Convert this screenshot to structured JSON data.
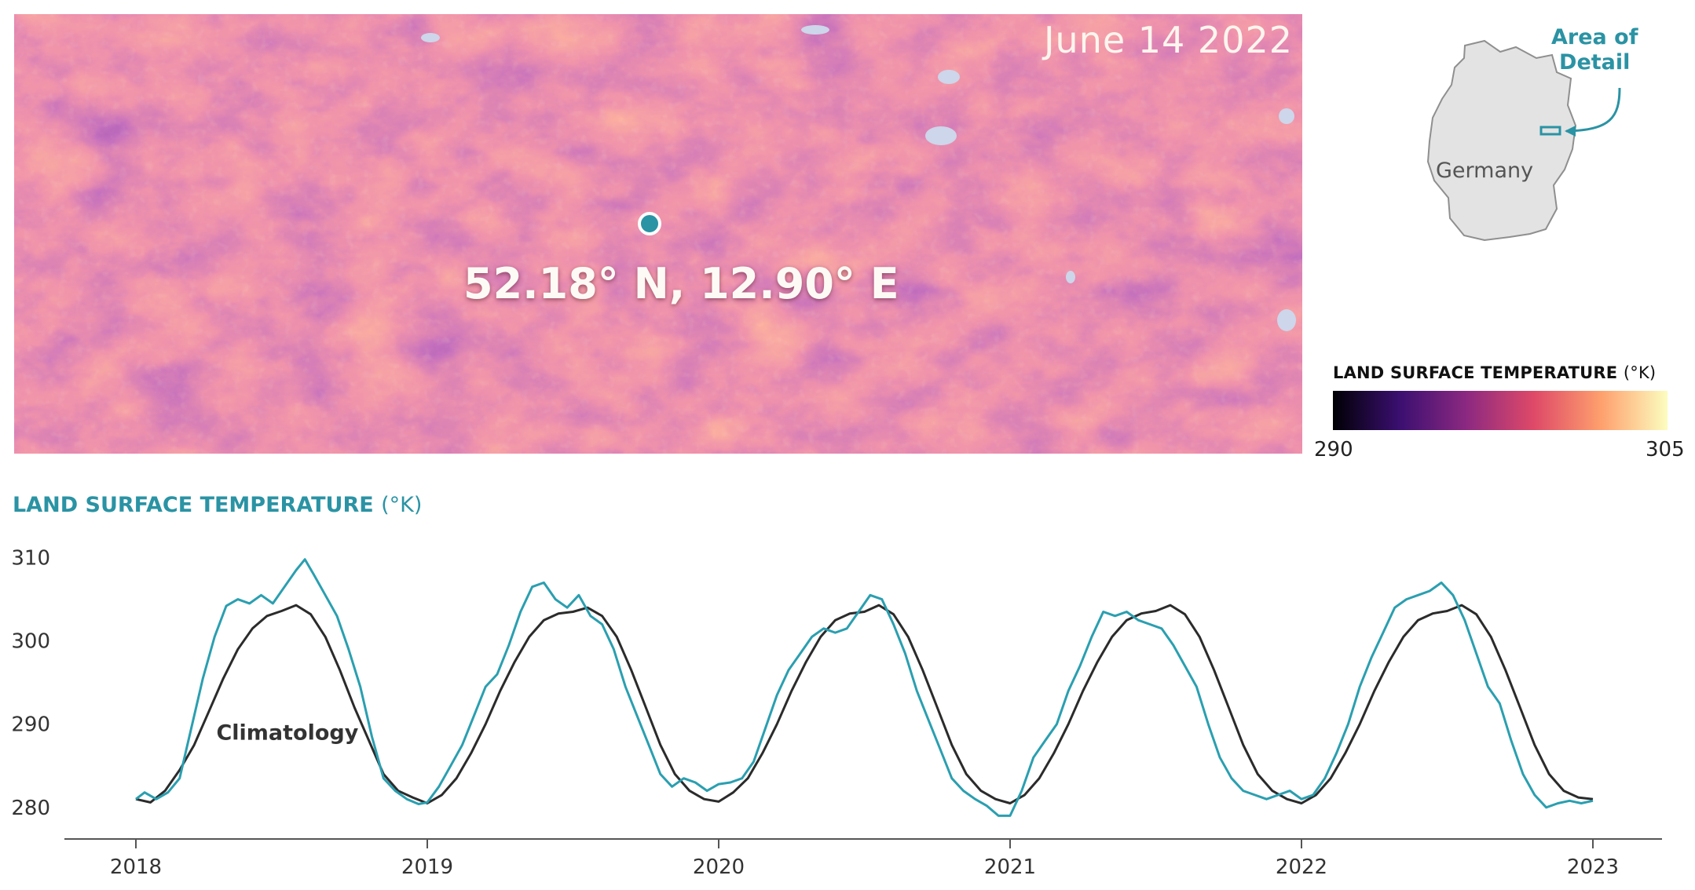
{
  "map": {
    "date": "June 14 2022",
    "coordinate": "52.18° N, 12.90° E"
  },
  "locator": {
    "callout": [
      "Area of",
      "Detail"
    ],
    "country": "Germany"
  },
  "colorbar": {
    "title": "LAND SURFACE TEMPERATURE",
    "unit": "(°K)",
    "min": "290",
    "max": "305",
    "palette": [
      "#000004",
      "#3b0f70",
      "#8c2981",
      "#de4968",
      "#fe9f6d",
      "#fcfdbf"
    ]
  },
  "chart_data": {
    "type": "line",
    "title": "LAND SURFACE TEMPERATURE",
    "title_unit": "(°K)",
    "xlabel": "",
    "ylabel": "",
    "x_ticks": [
      "2018",
      "2019",
      "2020",
      "2021",
      "2022",
      "2023"
    ],
    "y_ticks": [
      280,
      290,
      300,
      310
    ],
    "xlim": [
      2018.0,
      2023.0
    ],
    "ylim": [
      278,
      311
    ],
    "grid": false,
    "series": [
      {
        "name": "Climatology",
        "color": "#2b2b2b",
        "points": [
          [
            2018.0,
            281.0
          ],
          [
            2018.05,
            280.6
          ],
          [
            2018.1,
            282.0
          ],
          [
            2018.15,
            284.5
          ],
          [
            2018.2,
            287.5
          ],
          [
            2018.25,
            291.5
          ],
          [
            2018.3,
            295.5
          ],
          [
            2018.35,
            299.0
          ],
          [
            2018.4,
            301.5
          ],
          [
            2018.45,
            303.0
          ],
          [
            2018.5,
            303.6
          ],
          [
            2018.55,
            304.3
          ],
          [
            2018.6,
            303.2
          ],
          [
            2018.65,
            300.5
          ],
          [
            2018.7,
            296.5
          ],
          [
            2018.75,
            292.0
          ],
          [
            2018.8,
            288.0
          ],
          [
            2018.85,
            284.0
          ],
          [
            2018.9,
            282.0
          ],
          [
            2018.95,
            281.2
          ],
          [
            2019.0,
            280.5
          ],
          [
            2019.05,
            281.5
          ],
          [
            2019.1,
            283.5
          ],
          [
            2019.15,
            286.5
          ],
          [
            2019.2,
            290.0
          ],
          [
            2019.25,
            294.0
          ],
          [
            2019.3,
            297.5
          ],
          [
            2019.35,
            300.5
          ],
          [
            2019.4,
            302.5
          ],
          [
            2019.45,
            303.3
          ],
          [
            2019.5,
            303.5
          ],
          [
            2019.55,
            304.0
          ],
          [
            2019.6,
            303.0
          ],
          [
            2019.65,
            300.5
          ],
          [
            2019.7,
            296.5
          ],
          [
            2019.75,
            292.0
          ],
          [
            2019.8,
            287.5
          ],
          [
            2019.85,
            284.0
          ],
          [
            2019.9,
            282.0
          ],
          [
            2019.95,
            281.0
          ],
          [
            2020.0,
            280.7
          ],
          [
            2020.05,
            281.8
          ],
          [
            2020.1,
            283.5
          ],
          [
            2020.15,
            286.5
          ],
          [
            2020.2,
            290.0
          ],
          [
            2020.25,
            294.0
          ],
          [
            2020.3,
            297.5
          ],
          [
            2020.35,
            300.5
          ],
          [
            2020.4,
            302.5
          ],
          [
            2020.45,
            303.3
          ],
          [
            2020.5,
            303.5
          ],
          [
            2020.55,
            304.3
          ],
          [
            2020.6,
            303.2
          ],
          [
            2020.65,
            300.5
          ],
          [
            2020.7,
            296.5
          ],
          [
            2020.75,
            292.0
          ],
          [
            2020.8,
            287.5
          ],
          [
            2020.85,
            284.0
          ],
          [
            2020.9,
            282.0
          ],
          [
            2020.95,
            281.0
          ],
          [
            2021.0,
            280.5
          ],
          [
            2021.05,
            281.5
          ],
          [
            2021.1,
            283.5
          ],
          [
            2021.15,
            286.5
          ],
          [
            2021.2,
            290.0
          ],
          [
            2021.25,
            294.0
          ],
          [
            2021.3,
            297.5
          ],
          [
            2021.35,
            300.5
          ],
          [
            2021.4,
            302.5
          ],
          [
            2021.45,
            303.3
          ],
          [
            2021.5,
            303.6
          ],
          [
            2021.55,
            304.3
          ],
          [
            2021.6,
            303.2
          ],
          [
            2021.65,
            300.5
          ],
          [
            2021.7,
            296.5
          ],
          [
            2021.75,
            292.0
          ],
          [
            2021.8,
            287.5
          ],
          [
            2021.85,
            284.0
          ],
          [
            2021.9,
            282.0
          ],
          [
            2021.95,
            281.0
          ],
          [
            2022.0,
            280.5
          ],
          [
            2022.05,
            281.5
          ],
          [
            2022.1,
            283.5
          ],
          [
            2022.15,
            286.5
          ],
          [
            2022.2,
            290.0
          ],
          [
            2022.25,
            294.0
          ],
          [
            2022.3,
            297.5
          ],
          [
            2022.35,
            300.5
          ],
          [
            2022.4,
            302.5
          ],
          [
            2022.45,
            303.3
          ],
          [
            2022.5,
            303.6
          ],
          [
            2022.55,
            304.3
          ],
          [
            2022.6,
            303.2
          ],
          [
            2022.65,
            300.5
          ],
          [
            2022.7,
            296.5
          ],
          [
            2022.75,
            292.0
          ],
          [
            2022.8,
            287.5
          ],
          [
            2022.85,
            284.0
          ],
          [
            2022.9,
            282.0
          ],
          [
            2022.95,
            281.2
          ],
          [
            2023.0,
            281.0
          ]
        ]
      },
      {
        "name": "",
        "color": "#2a9fb0",
        "points": [
          [
            2018.0,
            281.0
          ],
          [
            2018.03,
            281.8
          ],
          [
            2018.07,
            281.0
          ],
          [
            2018.11,
            281.8
          ],
          [
            2018.15,
            283.5
          ],
          [
            2018.19,
            289.5
          ],
          [
            2018.23,
            295.5
          ],
          [
            2018.27,
            300.5
          ],
          [
            2018.31,
            304.2
          ],
          [
            2018.35,
            305.0
          ],
          [
            2018.39,
            304.5
          ],
          [
            2018.43,
            305.5
          ],
          [
            2018.47,
            304.5
          ],
          [
            2018.51,
            306.5
          ],
          [
            2018.55,
            308.5
          ],
          [
            2018.58,
            309.8
          ],
          [
            2018.61,
            308.0
          ],
          [
            2018.65,
            305.5
          ],
          [
            2018.69,
            303.0
          ],
          [
            2018.73,
            299.0
          ],
          [
            2018.77,
            294.5
          ],
          [
            2018.81,
            288.5
          ],
          [
            2018.85,
            283.5
          ],
          [
            2018.89,
            282.0
          ],
          [
            2018.93,
            281.0
          ],
          [
            2018.97,
            280.4
          ],
          [
            2019.0,
            280.6
          ],
          [
            2019.04,
            282.5
          ],
          [
            2019.08,
            285.0
          ],
          [
            2019.12,
            287.5
          ],
          [
            2019.16,
            291.0
          ],
          [
            2019.2,
            294.5
          ],
          [
            2019.24,
            296.0
          ],
          [
            2019.28,
            299.5
          ],
          [
            2019.32,
            303.5
          ],
          [
            2019.36,
            306.5
          ],
          [
            2019.4,
            307.0
          ],
          [
            2019.44,
            305.0
          ],
          [
            2019.48,
            304.0
          ],
          [
            2019.52,
            305.5
          ],
          [
            2019.56,
            303.0
          ],
          [
            2019.6,
            302.0
          ],
          [
            2019.64,
            299.0
          ],
          [
            2019.68,
            294.5
          ],
          [
            2019.72,
            291.0
          ],
          [
            2019.76,
            287.5
          ],
          [
            2019.8,
            284.0
          ],
          [
            2019.84,
            282.5
          ],
          [
            2019.88,
            283.5
          ],
          [
            2019.92,
            283.0
          ],
          [
            2019.96,
            282.0
          ],
          [
            2020.0,
            282.8
          ],
          [
            2020.04,
            283.0
          ],
          [
            2020.08,
            283.5
          ],
          [
            2020.12,
            285.5
          ],
          [
            2020.16,
            289.5
          ],
          [
            2020.2,
            293.5
          ],
          [
            2020.24,
            296.5
          ],
          [
            2020.28,
            298.5
          ],
          [
            2020.32,
            300.5
          ],
          [
            2020.36,
            301.5
          ],
          [
            2020.4,
            301.0
          ],
          [
            2020.44,
            301.5
          ],
          [
            2020.48,
            303.5
          ],
          [
            2020.52,
            305.5
          ],
          [
            2020.56,
            305.0
          ],
          [
            2020.6,
            302.0
          ],
          [
            2020.64,
            298.5
          ],
          [
            2020.68,
            294.0
          ],
          [
            2020.72,
            290.5
          ],
          [
            2020.76,
            287.0
          ],
          [
            2020.8,
            283.5
          ],
          [
            2020.84,
            282.0
          ],
          [
            2020.88,
            281.0
          ],
          [
            2020.92,
            280.2
          ],
          [
            2020.96,
            279.0
          ],
          [
            2021.0,
            279.0
          ],
          [
            2021.04,
            282.0
          ],
          [
            2021.08,
            286.0
          ],
          [
            2021.12,
            288.0
          ],
          [
            2021.16,
            290.0
          ],
          [
            2021.2,
            294.0
          ],
          [
            2021.24,
            297.0
          ],
          [
            2021.28,
            300.5
          ],
          [
            2021.32,
            303.5
          ],
          [
            2021.36,
            303.0
          ],
          [
            2021.4,
            303.5
          ],
          [
            2021.44,
            302.5
          ],
          [
            2021.48,
            302.0
          ],
          [
            2021.52,
            301.5
          ],
          [
            2021.56,
            299.5
          ],
          [
            2021.6,
            297.0
          ],
          [
            2021.64,
            294.5
          ],
          [
            2021.68,
            290.0
          ],
          [
            2021.72,
            286.0
          ],
          [
            2021.76,
            283.5
          ],
          [
            2021.8,
            282.0
          ],
          [
            2021.84,
            281.5
          ],
          [
            2021.88,
            281.0
          ],
          [
            2021.92,
            281.5
          ],
          [
            2021.96,
            282.0
          ],
          [
            2022.0,
            281.0
          ],
          [
            2022.04,
            281.5
          ],
          [
            2022.08,
            283.5
          ],
          [
            2022.12,
            286.5
          ],
          [
            2022.16,
            290.0
          ],
          [
            2022.2,
            294.5
          ],
          [
            2022.24,
            298.0
          ],
          [
            2022.28,
            301.0
          ],
          [
            2022.32,
            304.0
          ],
          [
            2022.36,
            305.0
          ],
          [
            2022.4,
            305.5
          ],
          [
            2022.44,
            306.0
          ],
          [
            2022.48,
            307.0
          ],
          [
            2022.52,
            305.5
          ],
          [
            2022.56,
            302.5
          ],
          [
            2022.6,
            298.5
          ],
          [
            2022.64,
            294.5
          ],
          [
            2022.68,
            292.5
          ],
          [
            2022.72,
            288.0
          ],
          [
            2022.76,
            284.0
          ],
          [
            2022.8,
            281.5
          ],
          [
            2022.84,
            280.0
          ],
          [
            2022.88,
            280.5
          ],
          [
            2022.92,
            280.8
          ],
          [
            2022.96,
            280.5
          ],
          [
            2023.0,
            280.8
          ]
        ]
      }
    ],
    "annotations": [
      {
        "text": "Climatology",
        "x": 2018.52,
        "y": 289.0
      }
    ]
  }
}
